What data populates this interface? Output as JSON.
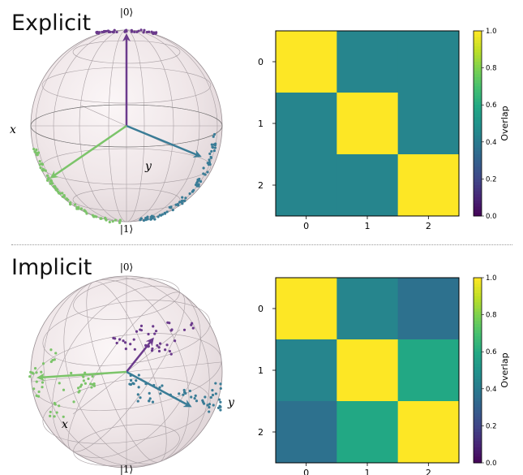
{
  "panels": [
    {
      "title": "Explicit",
      "bloch": {
        "label_top": "|0⟩",
        "label_bottom": "|1⟩",
        "label_x": "x",
        "label_y": "y"
      }
    },
    {
      "title": "Implicit",
      "bloch": {
        "label_top": "|0⟩",
        "label_bottom": "|1⟩",
        "label_x": "x",
        "label_y": "y"
      }
    }
  ],
  "colors": {
    "purple": "#6b3a8c",
    "teal": "#3a7c96",
    "green": "#7cc46a"
  },
  "chart_data": [
    {
      "type": "heatmap",
      "title": "",
      "xlabel": "",
      "ylabel": "",
      "x_ticks": [
        "0",
        "1",
        "2"
      ],
      "y_ticks": [
        "0",
        "1",
        "2"
      ],
      "colormap": "viridis",
      "values": [
        [
          1.0,
          0.45,
          0.45
        ],
        [
          0.45,
          1.0,
          0.45
        ],
        [
          0.45,
          0.45,
          1.0
        ]
      ],
      "colorbar": {
        "label": "Overlap",
        "ticks": [
          "0.0",
          "0.2",
          "0.4",
          "0.6",
          "0.8",
          "1.0"
        ],
        "range": [
          0,
          1
        ]
      }
    },
    {
      "type": "heatmap",
      "title": "",
      "xlabel": "",
      "ylabel": "",
      "x_ticks": [
        "0",
        "1",
        "2"
      ],
      "y_ticks": [
        "0",
        "1",
        "2"
      ],
      "colormap": "viridis",
      "values": [
        [
          1.0,
          0.45,
          0.37
        ],
        [
          0.45,
          1.0,
          0.6
        ],
        [
          0.37,
          0.6,
          1.0
        ]
      ],
      "colorbar": {
        "label": "Overlap",
        "ticks": [
          "0.0",
          "0.2",
          "0.4",
          "0.6",
          "0.8",
          "1.0"
        ],
        "range": [
          0,
          1
        ]
      }
    }
  ]
}
